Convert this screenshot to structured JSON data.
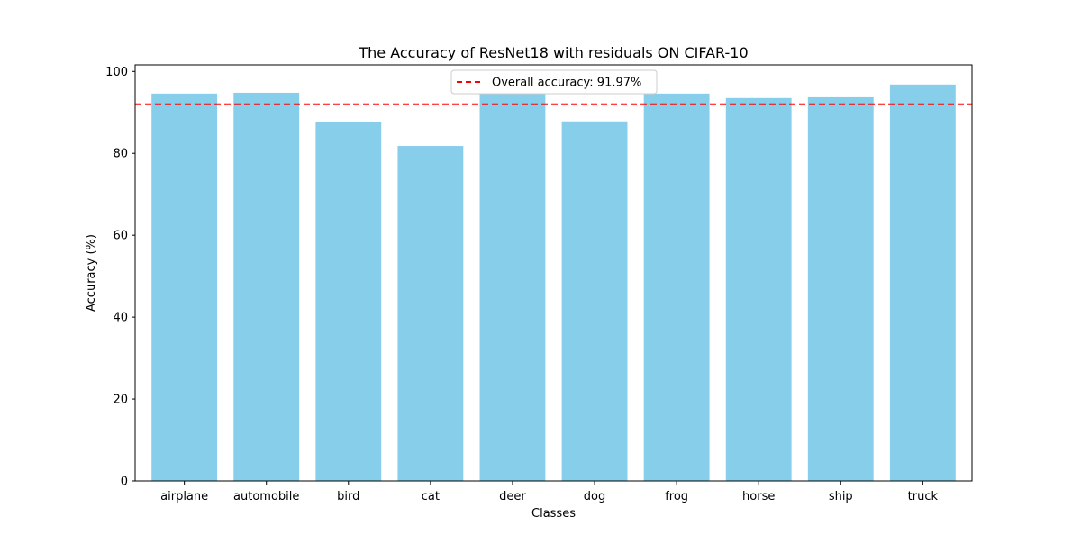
{
  "colors": {
    "bar": "#87CEEB",
    "reference_line": "#FF0000",
    "axis": "#000000",
    "legend_border": "#CCCCCC",
    "background": "#FFFFFF"
  },
  "chart_data": {
    "type": "bar",
    "title": "The Accuracy of ResNet18 with residuals ON CIFAR-10",
    "xlabel": "Classes",
    "ylabel": "Accuracy (%)",
    "categories": [
      "airplane",
      "automobile",
      "bird",
      "cat",
      "deer",
      "dog",
      "frog",
      "horse",
      "ship",
      "truck"
    ],
    "values": [
      94.6,
      94.8,
      87.6,
      81.8,
      94.5,
      87.8,
      94.6,
      93.5,
      93.7,
      96.8
    ],
    "ylim": [
      0,
      101.6
    ],
    "yticks": [
      0,
      20,
      40,
      60,
      80,
      100
    ],
    "grid": false,
    "reference_line": {
      "value": 91.97,
      "label": "Overall accuracy: 91.97%",
      "style": "dashed"
    },
    "legend": {
      "placement": "upper center",
      "entries": [
        "Overall accuracy: 91.97%"
      ]
    }
  }
}
